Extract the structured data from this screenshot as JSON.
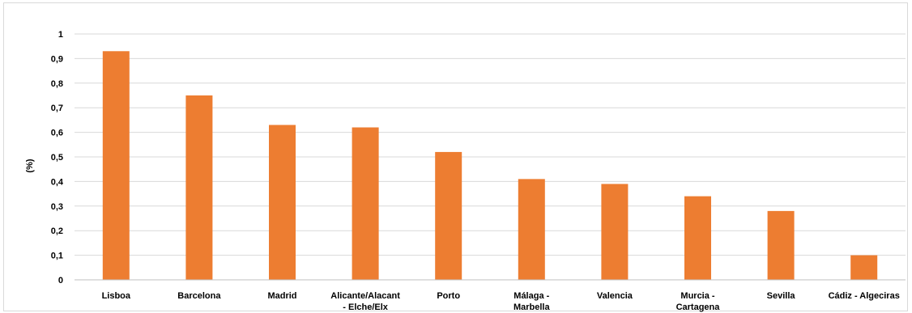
{
  "chart_data": {
    "type": "bar",
    "title": "",
    "xlabel": "",
    "ylabel": "(%)",
    "ylim": [
      0,
      1
    ],
    "yticks": [
      "0",
      "0,1",
      "0,2",
      "0,3",
      "0,4",
      "0,5",
      "0,6",
      "0,7",
      "0,8",
      "0,9",
      "1"
    ],
    "grid": true,
    "legend": "none",
    "bar_color": "#ed7d31",
    "categories": [
      "Lisboa",
      "Barcelona",
      "Madrid",
      "Alicante/Alacant - Elche/Elx",
      "Porto",
      "Málaga - Marbella",
      "Valencia",
      "Murcia - Cartagena",
      "Sevilla",
      "Cádiz - Algeciras"
    ],
    "category_lines": [
      [
        "Lisboa"
      ],
      [
        "Barcelona"
      ],
      [
        "Madrid"
      ],
      [
        "Alicante/Alacant",
        "- Elche/Elx"
      ],
      [
        "Porto"
      ],
      [
        "Málaga -",
        "Marbella"
      ],
      [
        "Valencia"
      ],
      [
        "Murcia -",
        "Cartagena"
      ],
      [
        "Sevilla"
      ],
      [
        "Cádiz - Algeciras"
      ]
    ],
    "values": [
      0.93,
      0.75,
      0.63,
      0.62,
      0.52,
      0.41,
      0.39,
      0.34,
      0.28,
      0.1
    ]
  }
}
